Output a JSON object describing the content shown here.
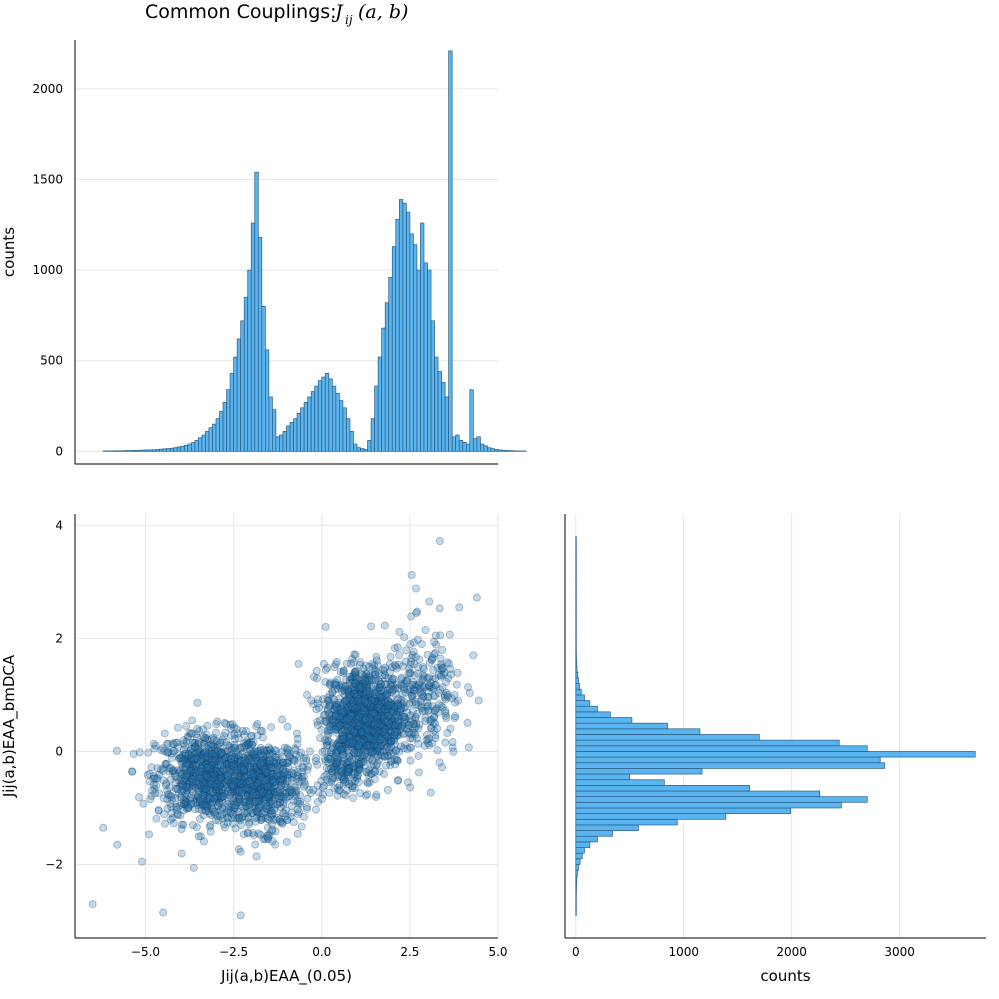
{
  "title_text": "Common Couplings: ",
  "title_math": "J_ij(a,b)",
  "colors": {
    "fill": "#5ab4ef",
    "stroke": "#2a5c80",
    "point": "#1f77b4",
    "grid": "#e6e6e6"
  },
  "chart_data": [
    {
      "id": "top-histogram",
      "type": "bar",
      "orientation": "vertical",
      "ylabel": "counts",
      "xlim": [
        -7.0,
        5.0
      ],
      "ylim": [
        -70,
        2270
      ],
      "yticks": [
        0,
        500,
        1000,
        1500,
        2000
      ],
      "bin_width": 0.1,
      "bin_start": -6.2,
      "values": [
        2,
        2,
        2,
        3,
        3,
        3,
        4,
        4,
        5,
        5,
        6,
        7,
        8,
        8,
        9,
        10,
        12,
        14,
        15,
        17,
        20,
        24,
        28,
        33,
        40,
        48,
        60,
        75,
        90,
        110,
        130,
        150,
        180,
        220,
        270,
        340,
        430,
        520,
        620,
        720,
        850,
        1000,
        1260,
        1540,
        1180,
        800,
        560,
        300,
        230,
        80,
        90,
        110,
        140,
        160,
        180,
        210,
        240,
        270,
        300,
        330,
        360,
        390,
        410,
        430,
        400,
        360,
        320,
        280,
        240,
        180,
        110,
        40,
        20,
        15,
        10,
        60,
        180,
        360,
        520,
        680,
        820,
        960,
        1130,
        1280,
        1390,
        1370,
        1320,
        1200,
        1140,
        1000,
        1260,
        1040,
        1000,
        720,
        520,
        440,
        380,
        300,
        2210,
        80,
        90,
        60,
        50,
        40,
        340,
        70,
        80,
        40,
        30,
        20,
        15,
        10,
        8,
        6,
        5,
        4,
        3,
        2,
        2,
        2
      ],
      "grid": true,
      "legend": "none"
    },
    {
      "id": "scatter",
      "type": "scatter",
      "xlabel": "Jij(a,b)EAA_(0.05)",
      "ylabel": "Jij(a,b)EAA_bmDCA",
      "xlim": [
        -7.0,
        5.0
      ],
      "ylim": [
        -3.3,
        4.2
      ],
      "xticks": [
        -5.0,
        -2.5,
        0.0,
        2.5,
        5.0
      ],
      "xtick_labels": [
        "−5.0",
        "−2.5",
        "0.0",
        "2.5",
        "5.0"
      ],
      "yticks": [
        -2,
        0,
        2,
        4
      ],
      "ytick_labels": [
        "−2",
        "0",
        "2",
        "4"
      ],
      "clusters": [
        {
          "cx": -3.2,
          "cy": -0.45,
          "sx": 0.75,
          "sy": 0.4,
          "n": 900
        },
        {
          "cx": -1.6,
          "cy": -0.6,
          "sx": 0.55,
          "sy": 0.4,
          "n": 600
        },
        {
          "cx": 1.2,
          "cy": 0.6,
          "sx": 0.55,
          "sy": 0.45,
          "n": 1200
        },
        {
          "cx": 2.9,
          "cy": 0.9,
          "sx": 0.55,
          "sy": 0.6,
          "n": 260
        },
        {
          "cx": 0.6,
          "cy": -0.25,
          "sx": 0.4,
          "sy": 0.25,
          "n": 150
        }
      ],
      "outliers": [
        [
          -6.5,
          -2.7
        ],
        [
          -4.5,
          -2.85
        ],
        [
          -2.3,
          -2.9
        ],
        [
          3.35,
          3.72
        ],
        [
          2.55,
          3.12
        ],
        [
          4.4,
          2.72
        ],
        [
          -6.2,
          -1.35
        ],
        [
          -5.8,
          -1.65
        ],
        [
          3.9,
          2.55
        ],
        [
          3.05,
          2.65
        ],
        [
          -5.1,
          -1.95
        ],
        [
          4.3,
          1.7
        ],
        [
          4.45,
          0.9
        ],
        [
          -0.3,
          0.9
        ]
      ],
      "grid": true,
      "legend": "none"
    },
    {
      "id": "right-histogram",
      "type": "bar",
      "orientation": "horizontal",
      "xlabel": "counts",
      "xlim": [
        -100,
        3800
      ],
      "xticks": [
        0,
        1000,
        2000,
        3000
      ],
      "ylim": [
        -3.3,
        4.2
      ],
      "bin_width": 0.1,
      "bin_start": -2.9,
      "values": [
        2,
        3,
        4,
        5,
        6,
        8,
        10,
        15,
        25,
        40,
        60,
        80,
        130,
        200,
        340,
        580,
        940,
        1390,
        1990,
        2460,
        2700,
        2260,
        1610,
        820,
        500,
        1170,
        2860,
        2820,
        3700,
        2700,
        2440,
        1700,
        1150,
        850,
        520,
        320,
        200,
        130,
        80,
        50,
        35,
        25,
        18,
        12,
        9,
        7,
        5,
        4,
        3,
        3,
        2,
        2,
        2,
        1,
        1,
        1,
        1,
        1,
        1,
        1,
        1,
        1,
        1,
        1,
        1,
        1,
        1
      ],
      "grid": true,
      "legend": "none"
    }
  ]
}
